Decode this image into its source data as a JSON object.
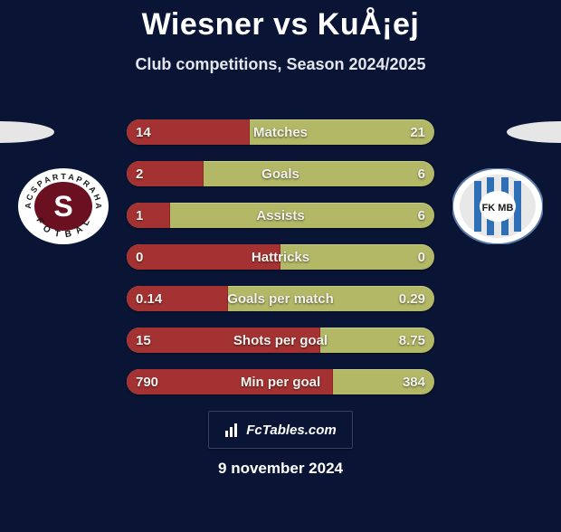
{
  "title": "Wiesner vs KuÅ¡ej",
  "subtitle": "Club competitions, Season 2024/2025",
  "date": "9 november 2024",
  "footer_brand": "FcTables.com",
  "colors": {
    "bar_left": "#a53232",
    "bar_right": "#b3b866",
    "background": "#0a1535"
  },
  "rows": [
    {
      "name": "Matches",
      "left": "14",
      "right": "21",
      "left_pct": 40
    },
    {
      "name": "Goals",
      "left": "2",
      "right": "6",
      "left_pct": 25
    },
    {
      "name": "Assists",
      "left": "1",
      "right": "6",
      "left_pct": 14
    },
    {
      "name": "Hattricks",
      "left": "0",
      "right": "0",
      "left_pct": 50
    },
    {
      "name": "Goals per match",
      "left": "0.14",
      "right": "0.29",
      "left_pct": 33
    },
    {
      "name": "Shots per goal",
      "left": "15",
      "right": "8.75",
      "left_pct": 63
    },
    {
      "name": "Min per goal",
      "left": "790",
      "right": "384",
      "left_pct": 67
    }
  ],
  "crest_left": {
    "label": "AC Sparta Praha",
    "ring_bg": "#ffffff",
    "ring_text": "#1a1a1a",
    "center_fill": "#6a1020",
    "letter": "S",
    "letter_color": "#ffffff"
  },
  "crest_right": {
    "label": "FK MB",
    "outer": "#ffffff",
    "stripe": "#2f6fb6",
    "center": "#ffffff"
  }
}
